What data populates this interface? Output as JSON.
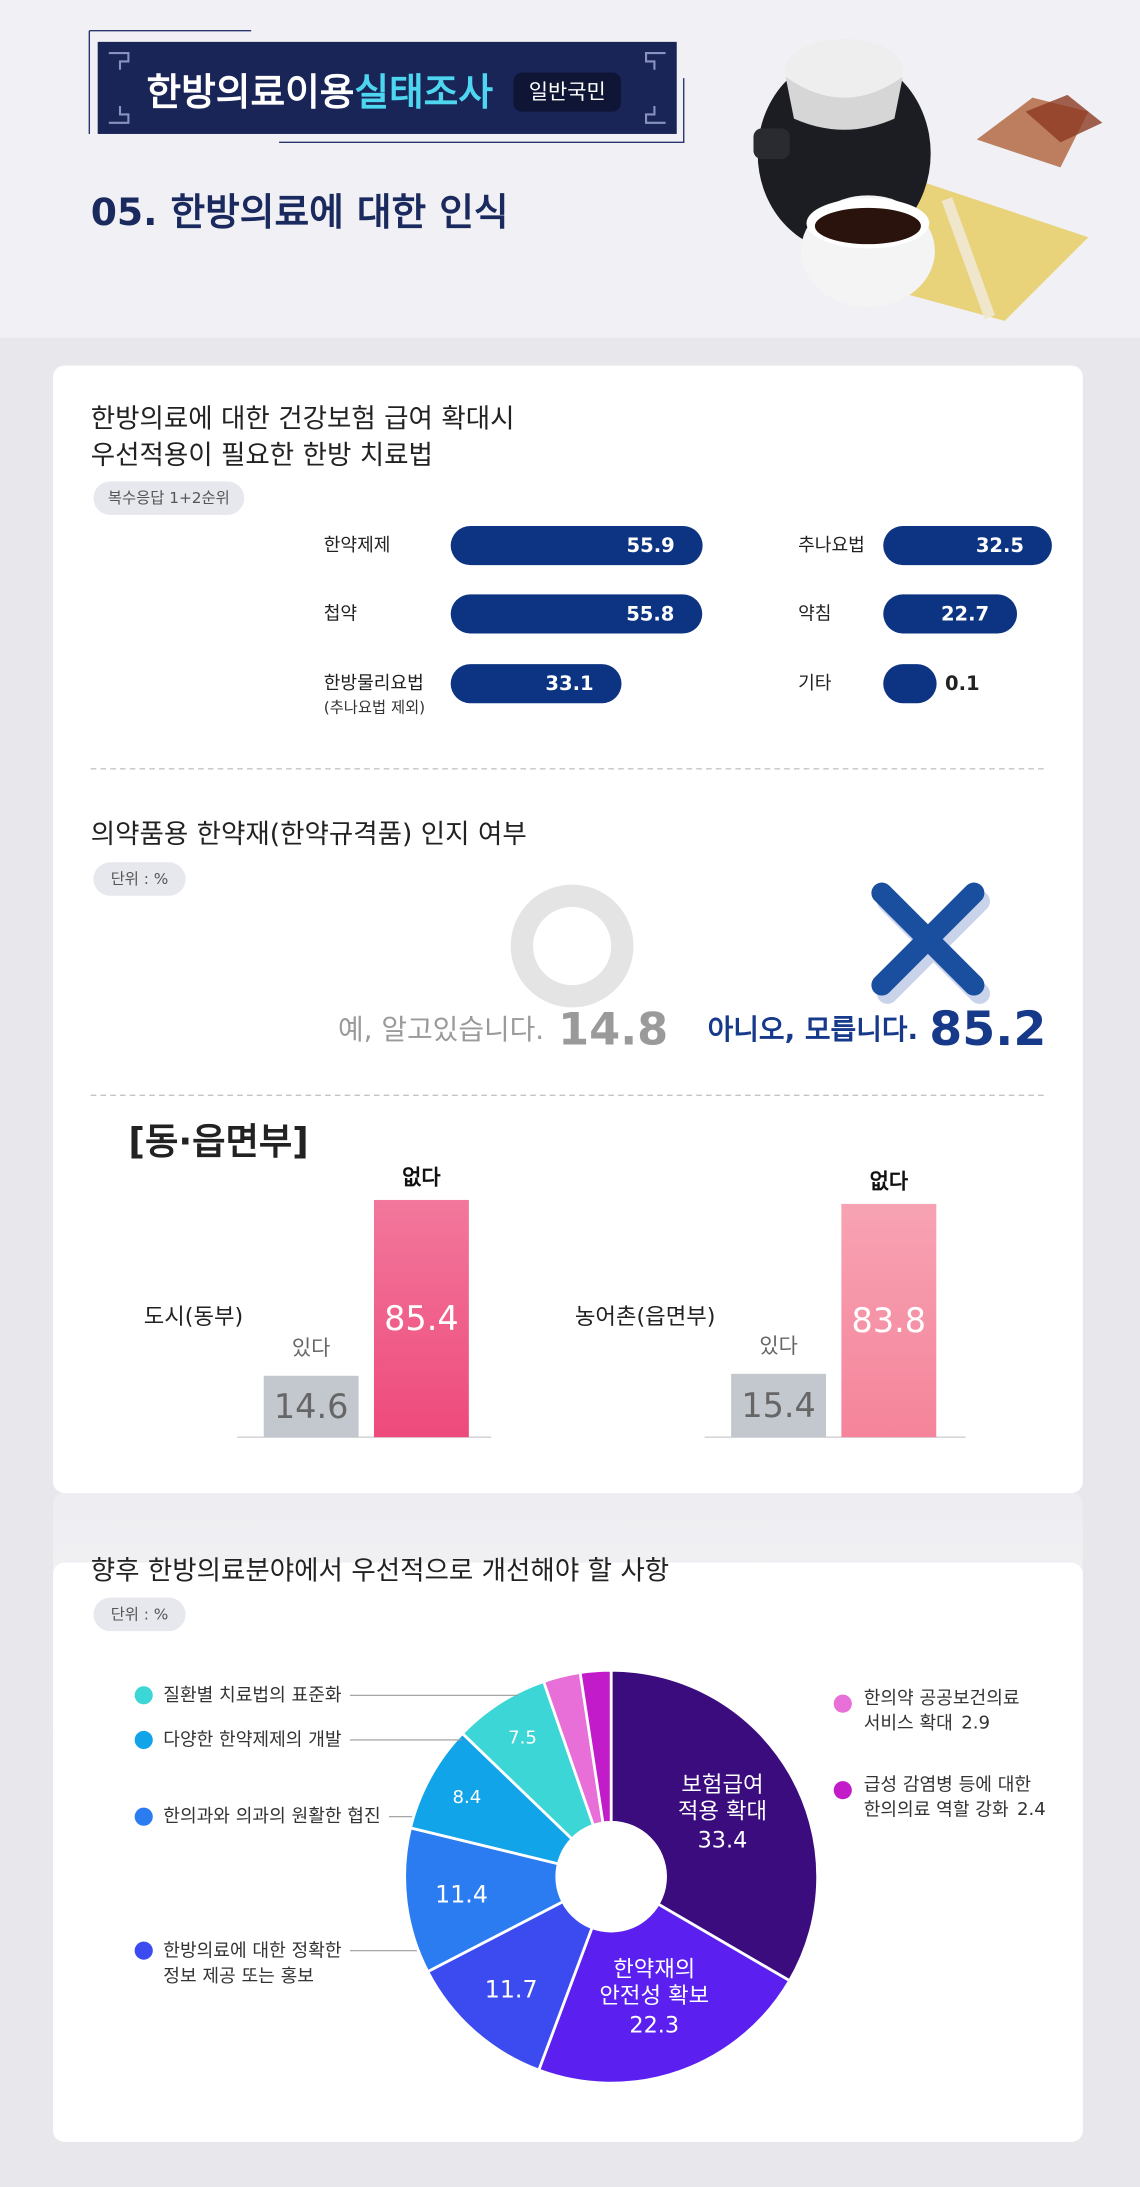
{
  "header": {
    "title_main": "한방의료이용",
    "title_highlight": "실태조사",
    "badge": "일반국민",
    "section": "05. 한방의료에 대한 인식"
  },
  "chart_data": [
    {
      "type": "bar",
      "title": "한방의료에 대한 건강보험 급여 확대시\n우선적용이 필요한 한방 치료법",
      "note": "복수응답 1+2순위",
      "categories": [
        "한약제제",
        "첩약",
        "한방물리요법",
        "추나요법",
        "약침",
        "기타"
      ],
      "category_notes": [
        null,
        null,
        "(추나요법 제외)",
        null,
        null,
        null
      ],
      "values": [
        55.9,
        55.8,
        33.1,
        32.5,
        22.7,
        0.1
      ],
      "color": "#0d3482"
    },
    {
      "type": "pictogram",
      "title": "의약품용 한약재(한약규격품) 인지 여부",
      "note": "단위 : %",
      "categories": [
        "예, 알고있습니다.",
        "아니오, 모릅니다."
      ],
      "values": [
        14.8,
        85.2
      ],
      "colors": [
        "#9a9a9a",
        "#17398a"
      ]
    },
    {
      "type": "panels",
      "title": "[동·읍면부]",
      "panels": [
        {
          "name": "도시(동부)",
          "categories": [
            "있다",
            "없다"
          ],
          "values": [
            14.6,
            85.4
          ],
          "colors": [
            "#c3c7ce",
            "#ee4a7b"
          ]
        },
        {
          "name": "농어촌(읍면부)",
          "categories": [
            "있다",
            "없다"
          ],
          "values": [
            15.4,
            83.8
          ],
          "colors": [
            "#c3c7ce",
            "#f5849a"
          ]
        }
      ]
    },
    {
      "type": "donut",
      "title": "향후 한방의료분야에서 우선적으로 개선해야 할 사항",
      "note": "단위 : %",
      "categories": [
        "보험급여\n적용 확대",
        "한약재의\n안전성 확보",
        "한방의료에 대한 정확한\n정보 제공 또는 홍보",
        "한의과와 의과의 원활한 협진",
        "다양한 한약제제의 개발",
        "질환별 치료법의 표준화",
        "한의약 공공보건의료\n서비스  확대",
        "급성 감염병 등에 대한\n한의의료 역할 강화"
      ],
      "values": [
        33.4,
        22.3,
        11.7,
        11.4,
        8.4,
        7.5,
        2.9,
        2.4
      ],
      "colors": [
        "#3a0c7e",
        "#5b1ff0",
        "#3c4bef",
        "#2a7cf0",
        "#12a4e8",
        "#3dd6d6",
        "#e86ed8",
        "#c21bc9"
      ],
      "legend_positions": [
        "inside",
        "inside",
        "left",
        "left",
        "left",
        "left",
        "right",
        "right"
      ]
    }
  ]
}
